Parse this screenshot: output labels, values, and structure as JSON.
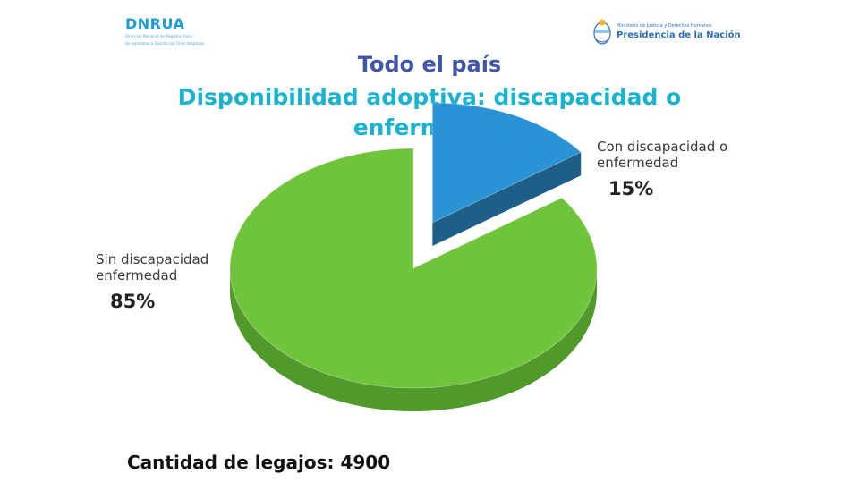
{
  "header": {
    "org_brand": "DNRUA",
    "org_subtitle_line1": "Dirección Nacional del Registro Único",
    "org_subtitle_line2": "de Aspirantes a Guarda con Fines Adoptivos",
    "ministry": "Ministerio de Justicia y Derechos Humanos",
    "presidency": "Presidencia de la Nación"
  },
  "chart_data": {
    "type": "pie",
    "title": "Todo el país",
    "subtitle_line1": "Disponibilidad adoptiva: discapacidad o",
    "subtitle_line2": "enfermedad",
    "slices": [
      {
        "label_line1": "Con discapacidad o",
        "label_line2": "enfermedad",
        "value": 15,
        "value_label": "15%",
        "color": "#2a93d6",
        "side_color": "#1e5f8a",
        "exploded": true
      },
      {
        "label_line1": "Sin discapacidad",
        "label_line2": "enfermedad",
        "value": 85,
        "value_label": "85%",
        "color": "#6fc43c",
        "side_color": "#4f9a2a",
        "exploded": false
      }
    ],
    "legend": "none"
  },
  "footer": {
    "count_text": "Cantidad de legajos: 4900"
  }
}
